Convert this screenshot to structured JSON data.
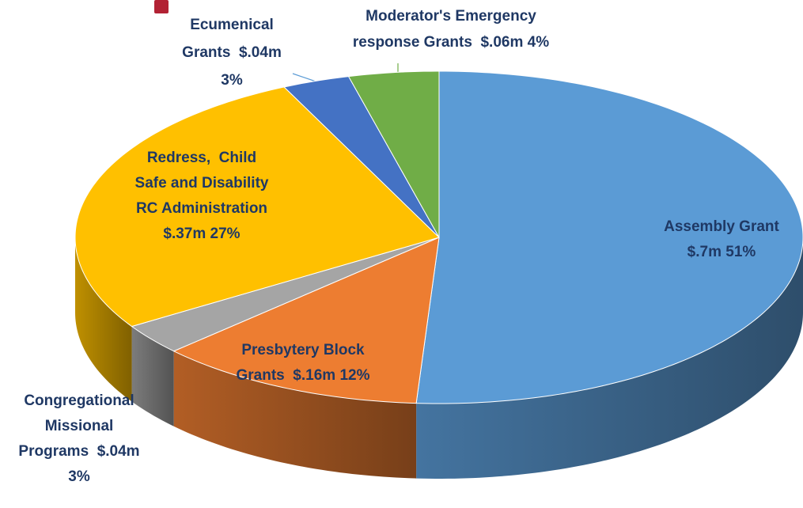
{
  "chart_data": {
    "type": "pie3d",
    "labels": [
      "Assembly Grant\n$.7m 51%",
      "Presbytery Block\nGrants  $.16m 12%",
      "Congregational\nMissional\nPrograms  $.04m\n3%",
      "Redress,  Child\nSafe and Disability\nRC Administration\n$.37m 27%",
      "Ecumenical\nGrants  $.04m\n3%",
      "Moderator's Emergency\nresponse Grants  $.06m 4%"
    ],
    "values": [
      51,
      12,
      3,
      27,
      3,
      4
    ],
    "colors": [
      "#5b9bd5",
      "#ed7d31",
      "#a5a5a5",
      "#ffc000",
      "#4472c4",
      "#70ad47"
    ]
  }
}
